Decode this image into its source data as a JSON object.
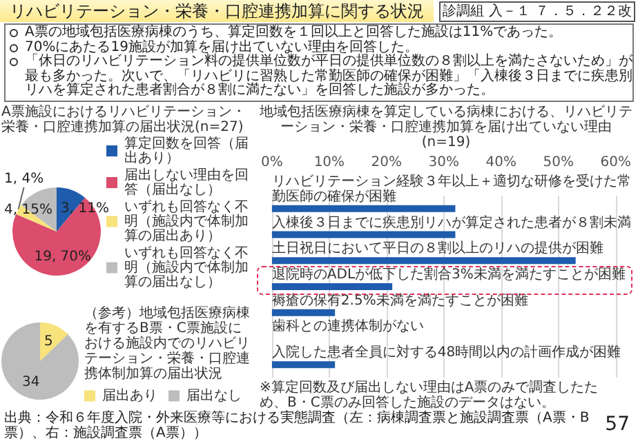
{
  "chart_data": [
    {
      "type": "other",
      "title": "リハビリテーション・栄養・口腔連携加算に関する状況",
      "annotations": [
        "診調組 入－１",
        "７．５．２２改",
        "A票の地域包括医療病棟のうち、算定回数を１回以上と回答した施設は11%であった。",
        "70%にあたる19施設が加算を届け出ていない理由を回答した。",
        "「休日のリハビリテーション料の提供単位数が平日の提供単位数の８割以上を満たさないため」が最も多かった。次いで、「リハビリに習熟した常勤医師の確保が困難」「入棟後３日までに疾患別リハを算定された患者割合が８割に満たない」を回答した施設が多かった。",
        "出典：令和６年度入院・外来医療等における実態調査（左：病棟調査票と施設調査票（A票・B票）、右：施設調査票（A票））",
        "57"
      ]
    },
    {
      "type": "pie",
      "title": "A票施設におけるリハビリテーション・栄養・口腔連携加算の届出状況(n=27)",
      "categories": [
        "算定回数を回答（届出あり）",
        "届出しない理由を回答（届出なし）",
        "いずれも回答なく不明（施設内で体制加算の届出あり）",
        "いずれも回答なく不明（施設内で体制加算の届出なし）"
      ],
      "values": [
        3,
        19,
        1,
        4
      ],
      "colors": [
        "#1f5cad",
        "#dc4c6c",
        "#f7e27c",
        "#bdbdbd"
      ],
      "value_labels": [
        "3, 11%",
        "19, 70%",
        "1, 4%",
        "4, 15%"
      ],
      "legend": "right"
    },
    {
      "type": "pie",
      "title": "（参考）地域包括医療病棟を有するB票・C票施設における施設内でのリハビリテーション・栄養・口腔連携体制加算の届出状況",
      "categories": [
        "届出あり",
        "届出なし"
      ],
      "values": [
        5,
        34
      ],
      "colors": [
        "#f7e27c",
        "#bdbdbd"
      ],
      "data_labels": true,
      "legend": "right"
    },
    {
      "type": "bar",
      "orientation": "horizontal",
      "title": "地域包括医療病棟を算定している病棟における、リハビリテーション・栄養・口腔連携加算を届け出ていない理由(n=19)",
      "categories": [
        "リハビリテーション経験３年以上＋適切な研修を受けた常勤医師の確保が困難",
        "入棟後３日までに疾患別リハが算定された患者が８割未満",
        "土日祝日において平日の８割以上のリハの提供が困難",
        "退院時のADLが低下した割合3%未満を満たすことが困難",
        "褥瘡の保有2.5%未満を満たすことが困難",
        "歯科との連携体制がない",
        "入院した患者全員に対する48時間以内の計画作成が困難"
      ],
      "values": [
        32,
        32,
        53,
        21,
        11,
        0,
        11
      ],
      "color": "#1f5cad",
      "xlim": [
        0,
        60
      ],
      "xticks": [
        {
          "value": 0,
          "label": "0%"
        },
        {
          "value": 10,
          "label": "10%"
        },
        {
          "value": 20,
          "label": "20%"
        },
        {
          "value": 30,
          "label": "30%"
        },
        {
          "value": 40,
          "label": "40%"
        },
        {
          "value": 50,
          "label": "50%"
        },
        {
          "value": 60,
          "label": "60%"
        }
      ],
      "grid": "x",
      "annotations": [
        "※算定回数及び届出しない理由はA票のみで調査したため、B・C票のみ回答した施設のデータはない。"
      ]
    }
  ]
}
